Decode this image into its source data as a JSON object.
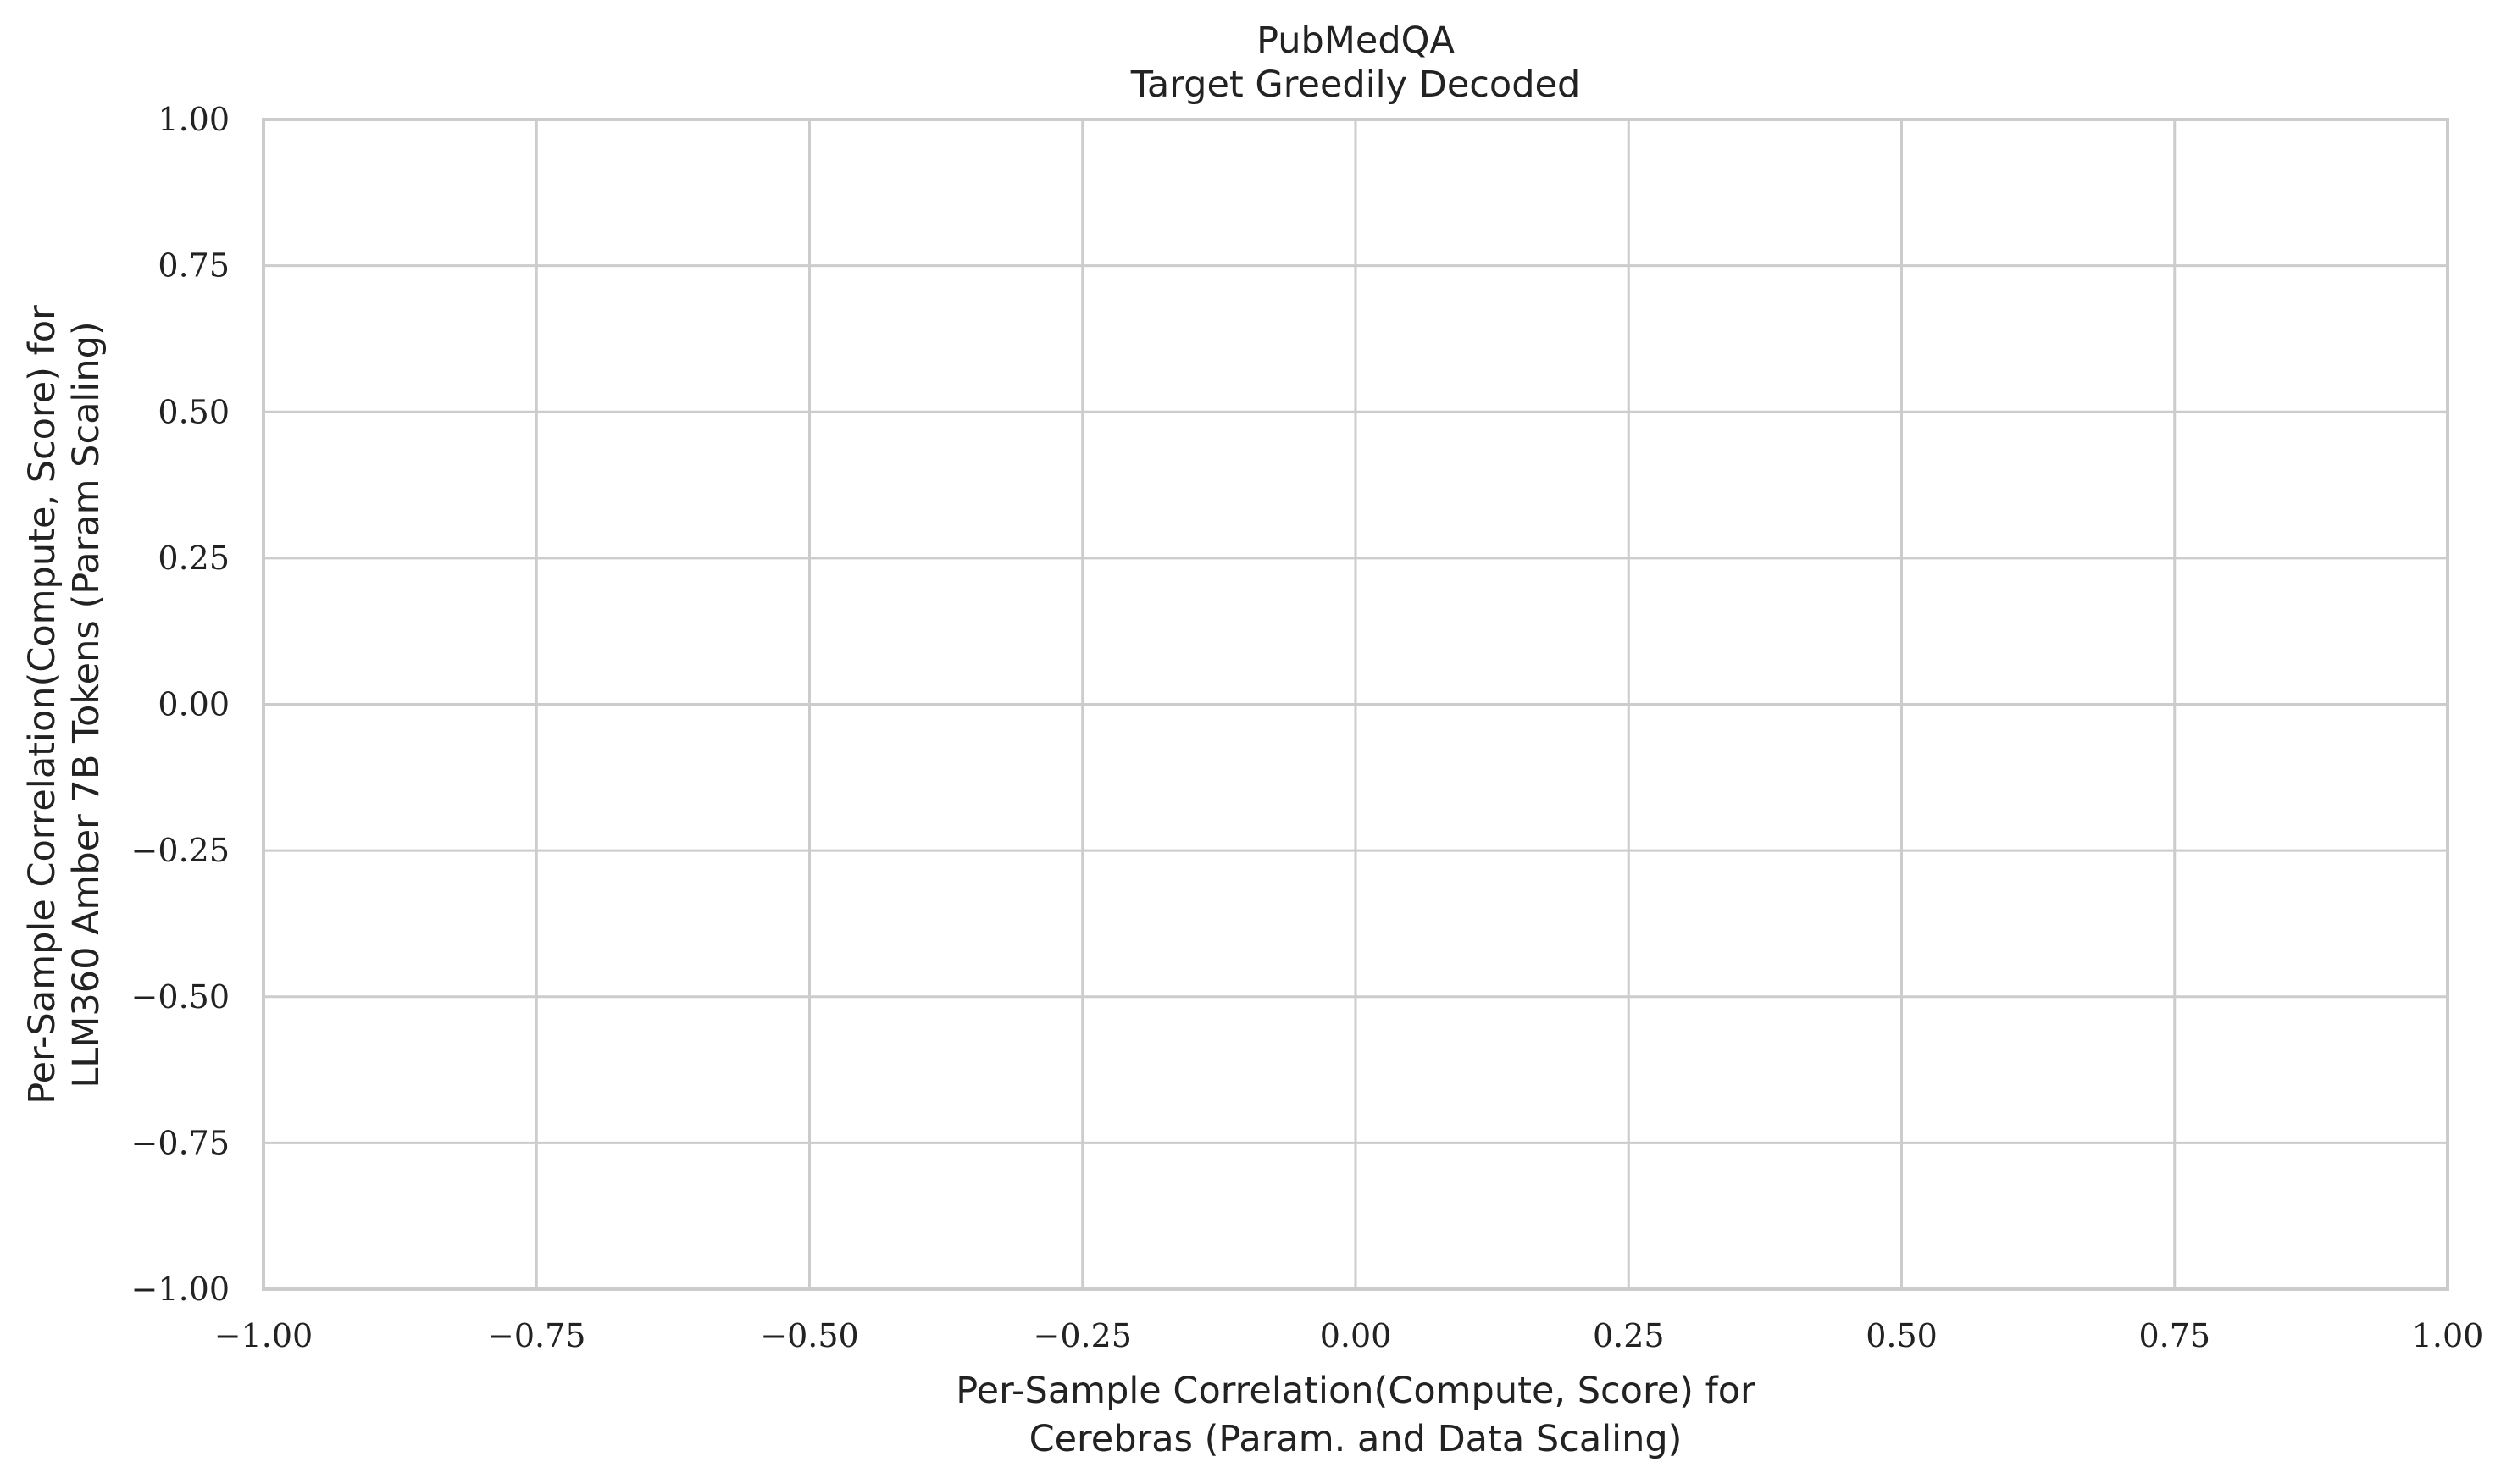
{
  "chart_data": {
    "type": "scatter",
    "title": "PubMedQA",
    "subtitle": "Target Greedily Decoded",
    "xlabel": [
      "Per-Sample Correlation(Compute, Score) for",
      "Cerebras (Param. and Data Scaling)"
    ],
    "ylabel": [
      "Per-Sample Correlation(Compute, Score) for",
      "LLM360 Amber 7B Tokens (Param Scaling)"
    ],
    "xlim": [
      -1.0,
      1.0
    ],
    "ylim": [
      -1.0,
      1.0
    ],
    "x_ticks": [
      -1.0,
      -0.75,
      -0.5,
      -0.25,
      0.0,
      0.25,
      0.5,
      0.75,
      1.0
    ],
    "x_tick_labels": [
      "−1.00",
      "−0.75",
      "−0.50",
      "−0.25",
      "0.00",
      "0.25",
      "0.50",
      "0.75",
      "1.00"
    ],
    "y_ticks": [
      -1.0,
      -0.75,
      -0.5,
      -0.25,
      0.0,
      0.25,
      0.5,
      0.75,
      1.0
    ],
    "y_tick_labels": [
      "−1.00",
      "−0.75",
      "−0.50",
      "−0.25",
      "0.00",
      "0.25",
      "0.50",
      "0.75",
      "1.00"
    ],
    "grid": true,
    "points": [],
    "colors": {
      "grid": "#cccccc",
      "frame": "#cccccc",
      "text": "#222222",
      "background": "#ffffff"
    }
  }
}
